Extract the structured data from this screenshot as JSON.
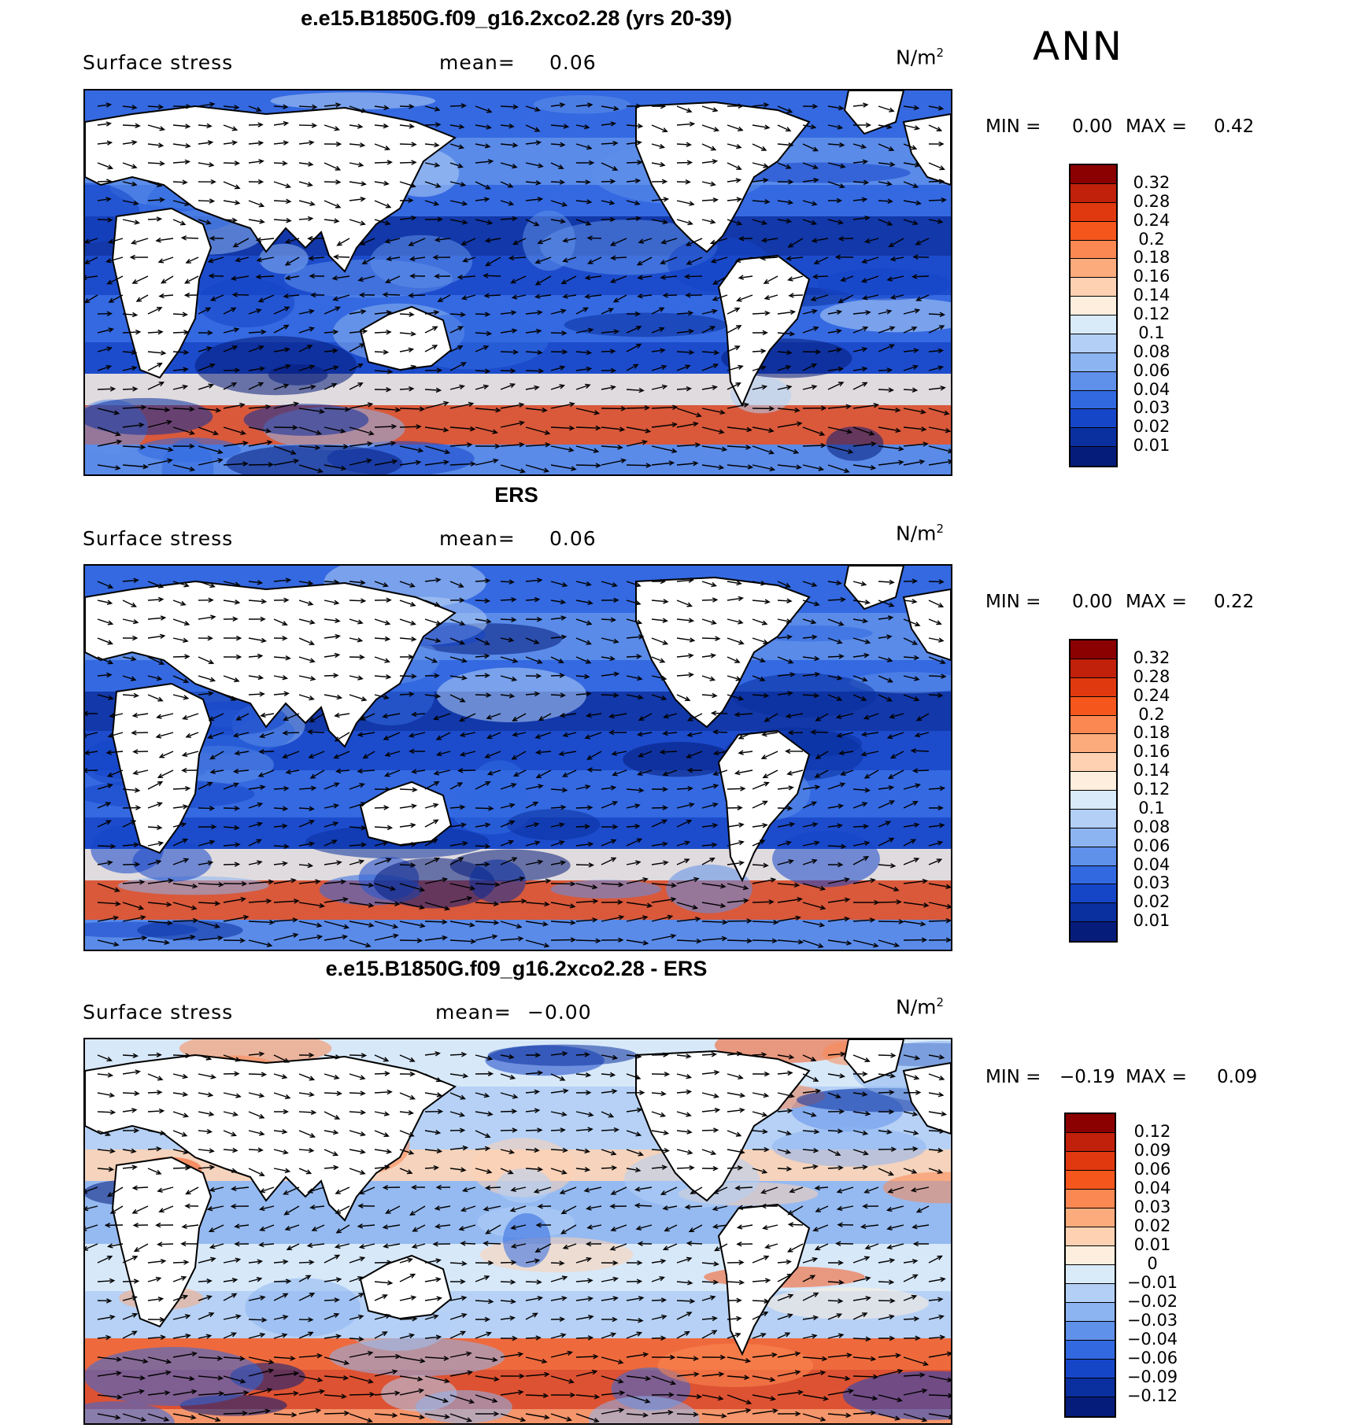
{
  "season": "ANN",
  "panels": [
    {
      "title": "e.e15.B1850G.f09_g16.2xco2.28 (yrs 20-39)",
      "variable": "Surface stress",
      "mean_label": "mean=",
      "mean_value": "0.06",
      "units": "N/m",
      "units_exp": "2",
      "min_label": "MIN =",
      "min_value": "0.00",
      "max_label": "MAX =",
      "max_value": "0.42",
      "scale": "positive",
      "colorbar": {
        "labels": [
          "0.32",
          "0.28",
          "0.24",
          "0.2",
          "0.18",
          "0.16",
          "0.14",
          "0.12",
          "0.1",
          "0.08",
          "0.06",
          "0.04",
          "0.03",
          "0.02",
          "0.01"
        ],
        "colors": [
          "#8b0000",
          "#c1200a",
          "#e0390f",
          "#f5561c",
          "#fb8852",
          "#fcab7c",
          "#fdd1b2",
          "#fdeedd",
          "#d9eaf9",
          "#b3cff5",
          "#8cb4f0",
          "#5f90ea",
          "#3269e0",
          "#1646c8",
          "#0a2f9f",
          "#051c7a"
        ]
      }
    },
    {
      "title": "ERS",
      "variable": "Surface stress",
      "mean_label": "mean=",
      "mean_value": "0.06",
      "units": "N/m",
      "units_exp": "2",
      "min_label": "MIN =",
      "min_value": "0.00",
      "max_label": "MAX =",
      "max_value": "0.22",
      "scale": "positive",
      "colorbar": {
        "labels": [
          "0.32",
          "0.28",
          "0.24",
          "0.2",
          "0.18",
          "0.16",
          "0.14",
          "0.12",
          "0.1",
          "0.08",
          "0.06",
          "0.04",
          "0.03",
          "0.02",
          "0.01"
        ],
        "colors": [
          "#8b0000",
          "#c1200a",
          "#e0390f",
          "#f5561c",
          "#fb8852",
          "#fcab7c",
          "#fdd1b2",
          "#fdeedd",
          "#d9eaf9",
          "#b3cff5",
          "#8cb4f0",
          "#5f90ea",
          "#3269e0",
          "#1646c8",
          "#0a2f9f",
          "#051c7a"
        ]
      }
    },
    {
      "title": "e.e15.B1850G.f09_g16.2xco2.28 - ERS",
      "variable": "Surface stress",
      "mean_label": "mean=",
      "mean_value": "−0.00",
      "units": "N/m",
      "units_exp": "2",
      "min_label": "MIN =",
      "min_value": "−0.19",
      "max_label": "MAX =",
      "max_value": "0.09",
      "scale": "difference",
      "colorbar": {
        "labels": [
          "0.12",
          "0.09",
          "0.06",
          "0.04",
          "0.03",
          "0.02",
          "0.01",
          "0",
          "−0.01",
          "−0.02",
          "−0.03",
          "−0.04",
          "−0.06",
          "−0.09",
          "−0.12"
        ],
        "colors": [
          "#8b0000",
          "#c1200a",
          "#e0390f",
          "#f5561c",
          "#fb8852",
          "#fcab7c",
          "#fdd1b2",
          "#fdeedd",
          "#d9eaf9",
          "#b3cff5",
          "#8cb4f0",
          "#5f90ea",
          "#3269e0",
          "#1646c8",
          "#0a2f9f",
          "#051c7a"
        ]
      }
    }
  ]
}
